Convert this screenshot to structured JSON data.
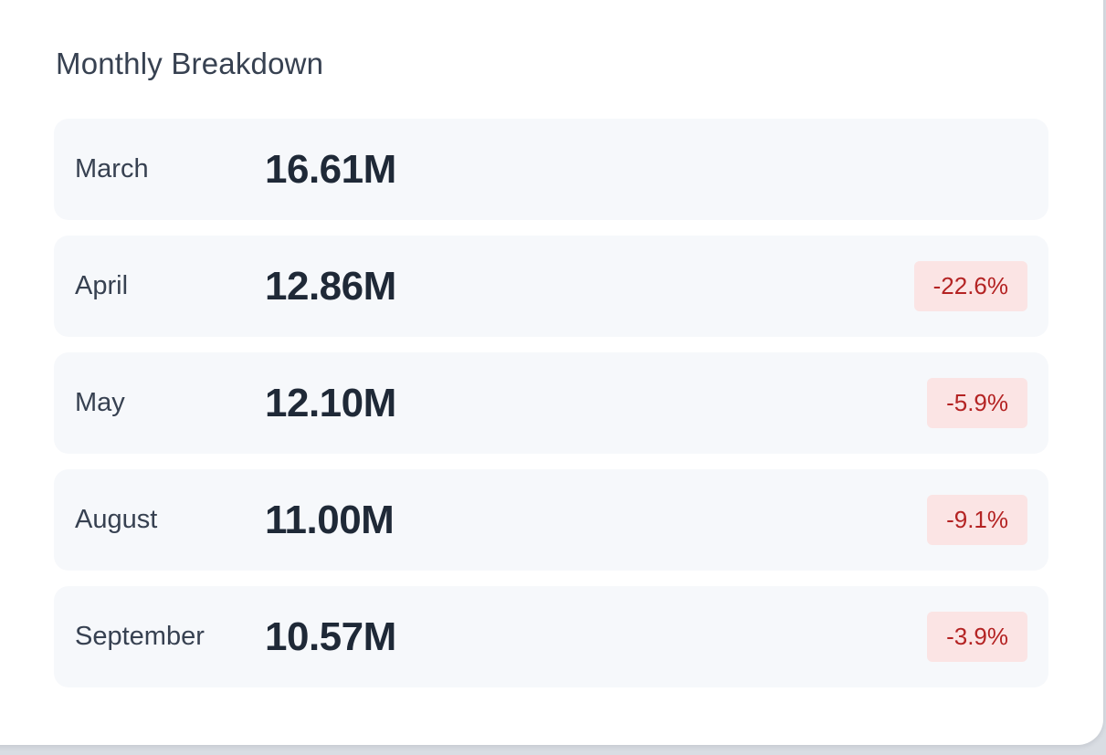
{
  "panel": {
    "title": "Monthly Breakdown"
  },
  "rows": [
    {
      "month": "March",
      "value": "16.61M",
      "change": ""
    },
    {
      "month": "April",
      "value": "12.86M",
      "change": "-22.6%"
    },
    {
      "month": "May",
      "value": "12.10M",
      "change": "-5.9%"
    },
    {
      "month": "August",
      "value": "11.00M",
      "change": "-9.1%"
    },
    {
      "month": "September",
      "value": "10.57M",
      "change": "-3.9%"
    }
  ],
  "colors": {
    "negative_text": "#b42323",
    "negative_bg": "#fbe4e4",
    "row_bg": "#f6f8fb",
    "card_bg": "#ffffff"
  }
}
